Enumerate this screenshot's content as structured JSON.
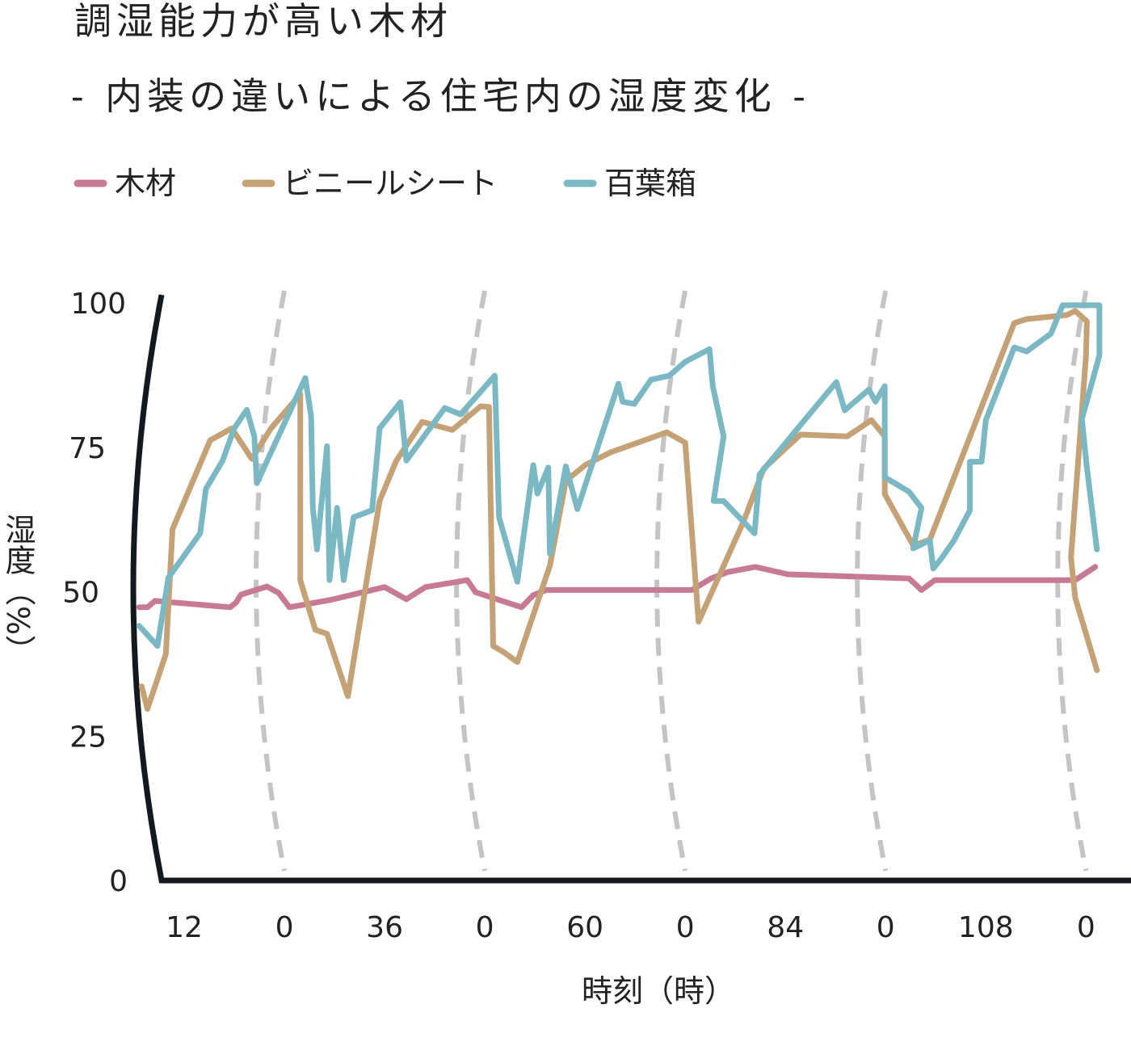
{
  "chart_data": {
    "type": "line",
    "title": "調湿能力が高い木材",
    "subtitle": "-  内装の違いによる住宅内の湿度変化  -",
    "xlabel": "時刻（時）",
    "ylabel": "湿度（%）",
    "xlim": [
      6,
      125
    ],
    "ylim": [
      0,
      100
    ],
    "xticks": [
      12,
      {
        "value": 24,
        "label": "0"
      },
      36,
      {
        "value": 48,
        "label": "0"
      },
      60,
      {
        "value": 72,
        "label": "0"
      },
      84,
      {
        "value": 96,
        "label": "0"
      },
      108,
      {
        "value": 120,
        "label": "0"
      }
    ],
    "yticks": [
      0,
      25,
      50,
      75,
      100
    ],
    "grid": true,
    "legend": "top-left",
    "series": [
      {
        "name": "木材",
        "color": "#c77b93",
        "x": [
          6.6,
          7.6,
          8.5,
          17.5,
          18.2,
          18.8,
          21.9,
          23.3,
          24.6,
          29.6,
          36.0,
          38.6,
          40.9,
          45.9,
          46.9,
          52.4,
          53.8,
          55.4,
          72.8,
          75.1,
          77.1,
          80.4,
          84.3,
          98.8,
          100.3,
          101.9,
          118.7,
          121.1
        ],
        "values": [
          47.3,
          47.3,
          48.4,
          47.3,
          48.1,
          49.5,
          50.9,
          49.8,
          47.3,
          48.6,
          50.8,
          48.7,
          50.8,
          52.0,
          49.9,
          47.3,
          49.4,
          50.3,
          50.3,
          52.3,
          53.4,
          54.3,
          53.0,
          52.3,
          50.3,
          52.0,
          52.0,
          54.3
        ]
      },
      {
        "name": "ビニールシート",
        "color": "#c4a276",
        "x": [
          6.9,
          7.6,
          9.8,
          10.6,
          15.1,
          17.7,
          20.1,
          22.4,
          25.9,
          25.9,
          27.7,
          29.1,
          31.6,
          35.4,
          37.4,
          40.5,
          44.1,
          47.5,
          48.5,
          49.0,
          50.4,
          51.9,
          55.8,
          57.7,
          60.1,
          63.0,
          69.8,
          72.0,
          73.6,
          79.0,
          81.4,
          85.8,
          91.4,
          94.3,
          95.9,
          95.9,
          99.3,
          101.3,
          111.4,
          112.9,
          117.7,
          118.7,
          120.1,
          120.0,
          118.2,
          118.7,
          121.3
        ],
        "values": [
          33.6,
          29.7,
          39.2,
          60.8,
          76.2,
          78.3,
          73.0,
          78.3,
          84.2,
          52.0,
          43.4,
          42.7,
          31.9,
          65.7,
          72.7,
          79.4,
          78.0,
          82.1,
          82.0,
          40.6,
          39.4,
          37.8,
          54.5,
          69.2,
          72.0,
          74.1,
          77.6,
          75.8,
          44.8,
          62.2,
          71.3,
          77.2,
          76.9,
          79.7,
          76.9,
          66.9,
          58.0,
          59.0,
          96.5,
          97.2,
          97.9,
          98.6,
          96.8,
          90.9,
          55.9,
          49.0,
          36.4
        ]
      },
      {
        "name": "百葉箱",
        "color": "#7ab8c4",
        "x": [
          6.6,
          8.8,
          10.1,
          13.9,
          14.6,
          16.6,
          18.0,
          19.5,
          20.4,
          20.7,
          26.5,
          27.2,
          27.4,
          27.9,
          29.1,
          29.4,
          30.3,
          31.1,
          32.3,
          34.5,
          35.4,
          37.9,
          38.6,
          43.2,
          45.1,
          49.2,
          49.7,
          51.9,
          53.8,
          54.3,
          55.6,
          55.8,
          57.7,
          59.1,
          64.0,
          64.5,
          65.9,
          66.9,
          67.9,
          70.1,
          72.0,
          74.9,
          75.3,
          76.6,
          75.4,
          76.6,
          80.3,
          80.9,
          86.7,
          90.1,
          91.1,
          94.0,
          94.8,
          95.9,
          95.9,
          98.8,
          100.3,
          99.3,
          101.3,
          101.7,
          102.7,
          104.2,
          106.1,
          106.1,
          107.5,
          108.0,
          111.4,
          112.9,
          115.8,
          117.2,
          121.6,
          121.6,
          119.5,
          120.1,
          121.3
        ],
        "values": [
          44.1,
          40.6,
          52.4,
          60.1,
          67.8,
          72.7,
          78.3,
          81.5,
          76.9,
          68.8,
          87.0,
          80.4,
          64.6,
          57.3,
          75.2,
          52.0,
          64.5,
          52.0,
          62.9,
          64.1,
          78.3,
          82.8,
          72.7,
          81.8,
          80.7,
          87.4,
          62.9,
          51.7,
          71.9,
          67.0,
          71.5,
          56.6,
          71.7,
          64.3,
          86.0,
          82.9,
          82.5,
          84.6,
          86.7,
          87.4,
          89.8,
          92.0,
          85.6,
          76.9,
          65.7,
          65.7,
          60.1,
          70.3,
          80.4,
          86.3,
          81.4,
          85.0,
          82.9,
          85.6,
          69.8,
          67.3,
          64.5,
          57.5,
          58.9,
          54.0,
          55.8,
          58.9,
          64.1,
          72.5,
          72.5,
          79.7,
          92.3,
          91.6,
          94.7,
          99.6,
          99.6,
          90.9,
          79.9,
          71.5,
          57.3
        ]
      }
    ]
  }
}
